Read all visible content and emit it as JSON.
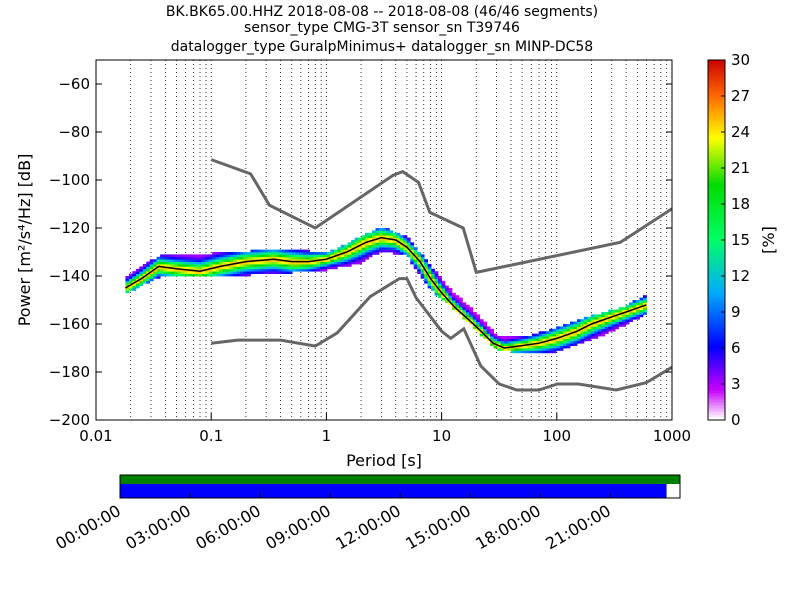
{
  "title": {
    "line1": "BK.BK65.00.HHZ   2018-08-08 -- 2018-08-08  (46/46 segments)",
    "line2": "sensor_type CMG-3T sensor_sn T39746",
    "line3": "datalogger_type GuralpMinimus+ datalogger_sn MINP-DC58"
  },
  "chart_data": [
    {
      "type": "heatmap",
      "xlabel": "Period [s]",
      "ylabel": "Power [m²/s⁴/Hz] [dB]",
      "x_scale": "log",
      "xlim": [
        0.01,
        1000
      ],
      "ylim": [
        -200,
        -50
      ],
      "x_ticks": [
        {
          "v": 0.01,
          "label": "0.01"
        },
        {
          "v": 0.1,
          "label": "0.1"
        },
        {
          "v": 1,
          "label": "1"
        },
        {
          "v": 10,
          "label": "10"
        },
        {
          "v": 100,
          "label": "100"
        },
        {
          "v": 1000,
          "label": "1000"
        }
      ],
      "y_ticks": [
        -200,
        -180,
        -160,
        -140,
        -120,
        -100,
        -80,
        -60
      ],
      "grid": "dotted vertical",
      "colorbar": {
        "label": "[%]",
        "ticks": [
          0,
          3,
          6,
          9,
          12,
          15,
          18,
          21,
          24,
          27,
          30
        ],
        "range": [
          0,
          30
        ]
      },
      "mean_curve": [
        [
          0.018,
          -145
        ],
        [
          0.025,
          -141
        ],
        [
          0.035,
          -136
        ],
        [
          0.05,
          -137
        ],
        [
          0.08,
          -138
        ],
        [
          0.12,
          -136
        ],
        [
          0.2,
          -134
        ],
        [
          0.35,
          -133
        ],
        [
          0.5,
          -134
        ],
        [
          0.7,
          -134
        ],
        [
          1.0,
          -133
        ],
        [
          1.5,
          -130
        ],
        [
          2.2,
          -126
        ],
        [
          3.0,
          -124
        ],
        [
          4.0,
          -125
        ],
        [
          5.0,
          -128
        ],
        [
          6.5,
          -134
        ],
        [
          8.0,
          -141
        ],
        [
          10,
          -147
        ],
        [
          13,
          -153
        ],
        [
          17,
          -158
        ],
        [
          22,
          -163
        ],
        [
          28,
          -168
        ],
        [
          35,
          -170
        ],
        [
          50,
          -169
        ],
        [
          70,
          -168
        ],
        [
          100,
          -166
        ],
        [
          150,
          -163
        ],
        [
          200,
          -160
        ],
        [
          300,
          -157
        ],
        [
          400,
          -155
        ],
        [
          600,
          -152
        ]
      ],
      "distribution_bands": [
        {
          "x": [
            0.018,
            0.035,
            0.1,
            0.5,
            1,
            2,
            3,
            5,
            8,
            12,
            20,
            30,
            50,
            100,
            200,
            400,
            600
          ],
          "low": [
            -147,
            -140,
            -140,
            -138,
            -137,
            -134,
            -129,
            -131,
            -145,
            -152,
            -162,
            -170,
            -172,
            -171,
            -166,
            -160,
            -155
          ],
          "high": [
            -141,
            -132,
            -131,
            -129,
            -131,
            -124,
            -120,
            -124,
            -136,
            -146,
            -156,
            -165,
            -166,
            -162,
            -157,
            -153,
            -148
          ]
        }
      ],
      "nhnm": [
        [
          0.1,
          -91.5
        ],
        [
          0.22,
          -97.4
        ],
        [
          0.32,
          -110.5
        ],
        [
          0.8,
          -120
        ],
        [
          3.8,
          -98
        ],
        [
          4.6,
          -96.5
        ],
        [
          6.3,
          -101
        ],
        [
          7.9,
          -113.5
        ],
        [
          15.4,
          -120
        ],
        [
          20,
          -138.5
        ],
        [
          354.8,
          -126
        ],
        [
          1000,
          -112
        ]
      ],
      "nlnm": [
        [
          0.1,
          -168
        ],
        [
          0.17,
          -166.7
        ],
        [
          0.4,
          -166.7
        ],
        [
          0.8,
          -169.2
        ],
        [
          1.24,
          -163.7
        ],
        [
          2.4,
          -148.6
        ],
        [
          4.3,
          -141.1
        ],
        [
          5.0,
          -141.1
        ],
        [
          6.0,
          -149
        ],
        [
          10,
          -163
        ],
        [
          12,
          -166
        ],
        [
          15.6,
          -162
        ],
        [
          21.9,
          -177.5
        ],
        [
          31.6,
          -185
        ],
        [
          45,
          -187.5
        ],
        [
          70,
          -187.5
        ],
        [
          101,
          -185
        ],
        [
          154,
          -185
        ],
        [
          328,
          -187.5
        ],
        [
          600,
          -184.4
        ],
        [
          1000,
          -178
        ]
      ]
    },
    {
      "type": "timeline",
      "x_ticks": [
        "00:00:00",
        "03:00:00",
        "06:00:00",
        "09:00:00",
        "12:00:00",
        "15:00:00",
        "18:00:00",
        "21:00:00"
      ],
      "top_bar_fraction": 1.0,
      "bottom_bar_fraction": 0.976,
      "top_bar_color": "#008000",
      "bottom_bar_color": "#0000ff"
    }
  ]
}
